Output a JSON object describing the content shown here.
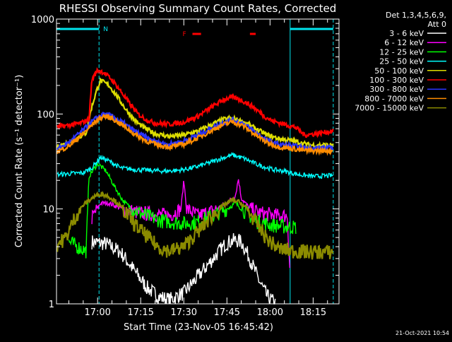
{
  "chart_data": {
    "type": "line",
    "title": "RHESSI Observing Summary Count Rates, Corrected",
    "xlabel": "Start Time (23-Nov-05 16:45:42)",
    "ylabel": "Corrected Count Rate (s⁻¹ detector⁻¹)",
    "y_scale": "log",
    "ylim": [
      1,
      1000
    ],
    "xlim": [
      "16:45:42",
      "18:24:00"
    ],
    "x_tick_labels": [
      "17:00",
      "17:15",
      "17:30",
      "17:45",
      "18:00",
      "18:15"
    ],
    "y_tick_labels": [
      "1",
      "10",
      "100",
      "1000"
    ],
    "legend_header": [
      "Det 1,3,4,5,6,9,",
      "Att 0"
    ],
    "legend_position": "right",
    "footer_date": "21-Oct-2021 10:54",
    "annotations": {
      "night_marker": "N",
      "flare_marker": "F",
      "night_intervals": [
        [
          "16:45:42",
          "17:00:30"
        ],
        [
          "18:07:00",
          "18:22:00"
        ]
      ],
      "flare_intervals": [
        [
          "17:33:00",
          "17:36:00"
        ],
        [
          "17:53:00",
          "17:55:00"
        ]
      ]
    },
    "series": [
      {
        "name": "3 - 6 keV",
        "color": "#ffffff",
        "points": [
          [
            "16:58",
            4.5
          ],
          [
            "17:03",
            4.3
          ],
          [
            "17:08",
            3.5
          ],
          [
            "17:13",
            2.2
          ],
          [
            "17:17",
            1.5
          ],
          [
            "17:21",
            1.2
          ],
          [
            "17:25",
            1.1
          ],
          [
            "17:30",
            1.3
          ],
          [
            "17:34",
            1.8
          ],
          [
            "17:38",
            2.5
          ],
          [
            "17:42",
            3.5
          ],
          [
            "17:45",
            4.4
          ],
          [
            "17:48",
            4.7
          ],
          [
            "17:50",
            4.5
          ],
          [
            "17:53",
            3.0
          ],
          [
            "17:56",
            1.8
          ],
          [
            "17:59",
            1.2
          ],
          [
            "18:02",
            1.0
          ]
        ]
      },
      {
        "name": "6 - 12 keV",
        "color": "#ff00ff",
        "points": [
          [
            "16:58",
            8.0
          ],
          [
            "17:01",
            11.5
          ],
          [
            "17:04",
            11.5
          ],
          [
            "17:07",
            10.5
          ],
          [
            "17:10",
            9.8
          ],
          [
            "17:15",
            9.0
          ],
          [
            "17:20",
            8.8
          ],
          [
            "17:25",
            8.5
          ],
          [
            "17:29",
            10.0
          ],
          [
            "17:30",
            20.0
          ],
          [
            "17:31",
            10.0
          ],
          [
            "17:35",
            8.5
          ],
          [
            "17:40",
            9.5
          ],
          [
            "17:45",
            11.5
          ],
          [
            "17:48",
            14.0
          ],
          [
            "17:49",
            21.0
          ],
          [
            "17:50",
            13.0
          ],
          [
            "17:53",
            10.0
          ],
          [
            "17:57",
            9.0
          ],
          [
            "18:02",
            8.5
          ],
          [
            "18:06",
            8.5
          ],
          [
            "18:07",
            2.0
          ]
        ]
      },
      {
        "name": "12 - 25 keV",
        "color": "#00ff00",
        "points": [
          [
            "16:50",
            4.5
          ],
          [
            "16:53",
            4.0
          ],
          [
            "16:56",
            3.6
          ],
          [
            "16:57",
            22.0
          ],
          [
            "17:00",
            30.0
          ],
          [
            "17:03",
            25.0
          ],
          [
            "17:06",
            17.0
          ],
          [
            "17:09",
            12.0
          ],
          [
            "17:12",
            10.0
          ],
          [
            "17:17",
            8.5
          ],
          [
            "17:22",
            7.5
          ],
          [
            "17:27",
            7.2
          ],
          [
            "17:31",
            7.0
          ],
          [
            "17:35",
            7.3
          ],
          [
            "17:40",
            8.5
          ],
          [
            "17:45",
            10.0
          ],
          [
            "17:48",
            11.5
          ],
          [
            "17:51",
            9.5
          ],
          [
            "17:55",
            7.5
          ],
          [
            "18:00",
            6.8
          ],
          [
            "18:05",
            6.5
          ],
          [
            "18:09",
            6.4
          ]
        ]
      },
      {
        "name": "25 - 50 keV",
        "color": "#00ffff",
        "points": [
          [
            "16:46",
            23.0
          ],
          [
            "16:50",
            23.5
          ],
          [
            "16:55",
            24.0
          ],
          [
            "16:58",
            27.0
          ],
          [
            "17:01",
            35.0
          ],
          [
            "17:04",
            32.0
          ],
          [
            "17:08",
            27.0
          ],
          [
            "17:13",
            26.0
          ],
          [
            "17:18",
            25.5
          ],
          [
            "17:23",
            25.0
          ],
          [
            "17:28",
            25.5
          ],
          [
            "17:33",
            27.0
          ],
          [
            "17:38",
            30.0
          ],
          [
            "17:43",
            34.0
          ],
          [
            "17:47",
            37.0
          ],
          [
            "17:51",
            34.0
          ],
          [
            "17:56",
            29.0
          ],
          [
            "18:01",
            26.0
          ],
          [
            "18:05",
            25.0
          ],
          [
            "18:10",
            23.0
          ],
          [
            "18:15",
            22.0
          ],
          [
            "18:22",
            22.5
          ]
        ]
      },
      {
        "name": "50 - 100 keV",
        "color": "#dddd00",
        "points": [
          [
            "16:46",
            45.0
          ],
          [
            "16:50",
            50.0
          ],
          [
            "16:53",
            56.0
          ],
          [
            "16:56",
            63.0
          ],
          [
            "16:58",
            120.0
          ],
          [
            "17:00",
            190.0
          ],
          [
            "17:01",
            225.0
          ],
          [
            "17:04",
            200.0
          ],
          [
            "17:07",
            150.0
          ],
          [
            "17:10",
            110.0
          ],
          [
            "17:13",
            85.0
          ],
          [
            "17:16",
            72.0
          ],
          [
            "17:20",
            62.0
          ],
          [
            "17:25",
            58.0
          ],
          [
            "17:30",
            60.0
          ],
          [
            "17:35",
            66.0
          ],
          [
            "17:40",
            78.0
          ],
          [
            "17:44",
            88.0
          ],
          [
            "17:47",
            90.0
          ],
          [
            "17:51",
            82.0
          ],
          [
            "17:55",
            70.0
          ],
          [
            "17:59",
            60.0
          ],
          [
            "18:03",
            55.0
          ],
          [
            "18:08",
            52.0
          ],
          [
            "18:14",
            47.0
          ],
          [
            "18:22",
            47.0
          ]
        ]
      },
      {
        "name": "100 - 300 keV",
        "color": "#ff0000",
        "points": [
          [
            "16:46",
            73.0
          ],
          [
            "16:50",
            76.0
          ],
          [
            "16:54",
            80.0
          ],
          [
            "16:57",
            88.0
          ],
          [
            "16:58",
            230.0
          ],
          [
            "17:00",
            290.0
          ],
          [
            "17:02",
            275.0
          ],
          [
            "17:05",
            230.0
          ],
          [
            "17:08",
            175.0
          ],
          [
            "17:11",
            130.0
          ],
          [
            "17:14",
            100.0
          ],
          [
            "17:17",
            87.0
          ],
          [
            "17:20",
            80.0
          ],
          [
            "17:25",
            78.0
          ],
          [
            "17:30",
            82.0
          ],
          [
            "17:35",
            95.0
          ],
          [
            "17:40",
            120.0
          ],
          [
            "17:44",
            143.0
          ],
          [
            "17:47",
            150.0
          ],
          [
            "17:50",
            140.0
          ],
          [
            "17:54",
            120.0
          ],
          [
            "17:58",
            95.0
          ],
          [
            "18:01",
            84.0
          ],
          [
            "18:05",
            78.0
          ],
          [
            "18:09",
            72.0
          ],
          [
            "18:12",
            60.0
          ],
          [
            "18:16",
            62.0
          ],
          [
            "18:22",
            66.0
          ]
        ]
      },
      {
        "name": "300 - 800 keV",
        "color": "#2a33ff",
        "points": [
          [
            "16:46",
            43.0
          ],
          [
            "16:50",
            50.0
          ],
          [
            "16:55",
            68.0
          ],
          [
            "16:59",
            88.0
          ],
          [
            "17:02",
            100.0
          ],
          [
            "17:05",
            95.0
          ],
          [
            "17:09",
            80.0
          ],
          [
            "17:13",
            66.0
          ],
          [
            "17:17",
            56.0
          ],
          [
            "17:21",
            50.0
          ],
          [
            "17:25",
            48.0
          ],
          [
            "17:30",
            52.0
          ],
          [
            "17:35",
            60.0
          ],
          [
            "17:40",
            72.0
          ],
          [
            "17:44",
            82.0
          ],
          [
            "17:47",
            87.0
          ],
          [
            "17:51",
            78.0
          ],
          [
            "17:55",
            64.0
          ],
          [
            "17:59",
            53.0
          ],
          [
            "18:03",
            48.0
          ],
          [
            "18:08",
            46.0
          ],
          [
            "18:13",
            44.0
          ],
          [
            "18:22",
            44.0
          ]
        ]
      },
      {
        "name": "800 - 7000 keV",
        "color": "#ff8c00",
        "points": [
          [
            "16:46",
            40.0
          ],
          [
            "16:50",
            46.0
          ],
          [
            "16:55",
            62.0
          ],
          [
            "16:59",
            82.0
          ],
          [
            "17:02",
            95.0
          ],
          [
            "17:05",
            90.0
          ],
          [
            "17:09",
            75.0
          ],
          [
            "17:13",
            61.0
          ],
          [
            "17:17",
            52.0
          ],
          [
            "17:21",
            47.0
          ],
          [
            "17:25",
            45.0
          ],
          [
            "17:30",
            48.0
          ],
          [
            "17:35",
            56.0
          ],
          [
            "17:40",
            68.0
          ],
          [
            "17:44",
            78.0
          ],
          [
            "17:47",
            83.0
          ],
          [
            "17:51",
            74.0
          ],
          [
            "17:55",
            60.0
          ],
          [
            "17:59",
            50.0
          ],
          [
            "18:03",
            45.0
          ],
          [
            "18:08",
            43.0
          ],
          [
            "18:13",
            41.0
          ],
          [
            "18:22",
            41.0
          ]
        ]
      },
      {
        "name": "7000 - 15000 keV",
        "color": "#8b8b00",
        "points": [
          [
            "16:46",
            4.2
          ],
          [
            "16:49",
            5.0
          ],
          [
            "16:52",
            8.0
          ],
          [
            "16:55",
            11.0
          ],
          [
            "16:58",
            13.0
          ],
          [
            "17:01",
            14.5
          ],
          [
            "17:04",
            13.5
          ],
          [
            "17:07",
            11.5
          ],
          [
            "17:10",
            9.0
          ],
          [
            "17:13",
            6.8
          ],
          [
            "17:17",
            5.2
          ],
          [
            "17:21",
            4.0
          ],
          [
            "17:25",
            3.6
          ],
          [
            "17:30",
            4.0
          ],
          [
            "17:35",
            5.8
          ],
          [
            "17:40",
            8.5
          ],
          [
            "17:44",
            11.0
          ],
          [
            "17:47",
            12.5
          ],
          [
            "17:50",
            11.5
          ],
          [
            "17:53",
            9.0
          ],
          [
            "17:56",
            6.5
          ],
          [
            "17:59",
            4.8
          ],
          [
            "18:03",
            3.8
          ],
          [
            "18:08",
            3.6
          ],
          [
            "18:14",
            3.5
          ],
          [
            "18:22",
            3.5
          ]
        ]
      }
    ]
  }
}
